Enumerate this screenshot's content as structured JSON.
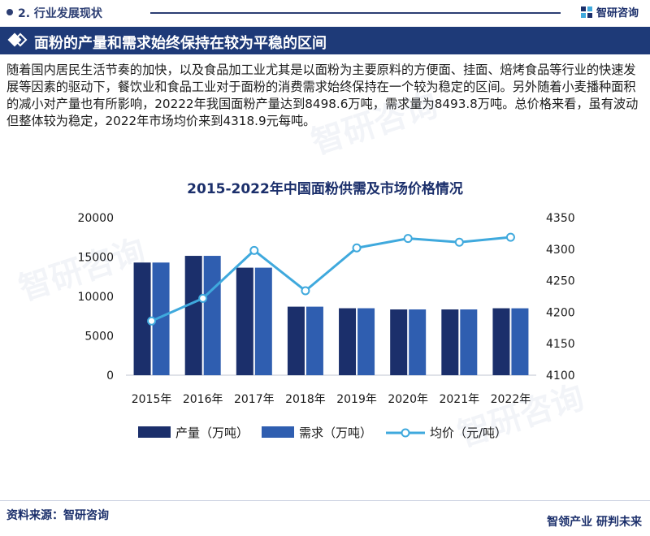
{
  "header": {
    "section": "2. 行业发展现状",
    "brand": "智研咨询"
  },
  "title": "面粉的产量和需求始终保持在较为平稳的区间",
  "paragraph": "随着国内居民生活节奏的加快，以及食品加工业尤其是以面粉为主要原料的方便面、挂面、焙烤食品等行业的快速发展等因素的驱动下，餐饮业和食品工业对于面粉的消费需求始终保持在一个较为稳定的区间。另外随着小麦播种面积的减小对产量也有所影响，20222年我国面粉产量达到8498.6万吨，需求量为8493.8万吨。总价格来看，虽有波动但整体较为稳定，2022年市场均价来到4318.9元每吨。",
  "chart_data": {
    "type": "bar",
    "title": "2015-2022年中国面粉供需及市场价格情况",
    "categories": [
      "2015年",
      "2016年",
      "2017年",
      "2018年",
      "2019年",
      "2020年",
      "2021年",
      "2022年"
    ],
    "series": [
      {
        "name": "产量（万吨）",
        "type": "bar",
        "axis": "left",
        "color": "#1b2f6b",
        "values": [
          14300,
          15150,
          13650,
          8700,
          8500,
          8350,
          8350,
          8498.6
        ]
      },
      {
        "name": "需求（万吨）",
        "type": "bar",
        "axis": "left",
        "color": "#2f5eb0",
        "values": [
          14300,
          15150,
          13650,
          8700,
          8500,
          8350,
          8350,
          8493.8
        ]
      },
      {
        "name": "均价（元/吨）",
        "type": "line",
        "axis": "right",
        "color": "#3fa9dd",
        "values": [
          4186,
          4222,
          4298,
          4234,
          4302,
          4317,
          4311,
          4318.9
        ]
      }
    ],
    "y_left": {
      "ticks": [
        "20000",
        "15000",
        "10000",
        "5000",
        "0"
      ],
      "min": 0,
      "max": 20000
    },
    "y_right": {
      "ticks": [
        "4350",
        "4300",
        "4250",
        "4200",
        "4150",
        "4100"
      ],
      "min": 4100,
      "max": 4350
    },
    "legend_position": "bottom"
  },
  "footer": {
    "source": "资料来源：智研咨询",
    "brand": "智领产业 研判未来"
  },
  "watermark": "智研咨询"
}
